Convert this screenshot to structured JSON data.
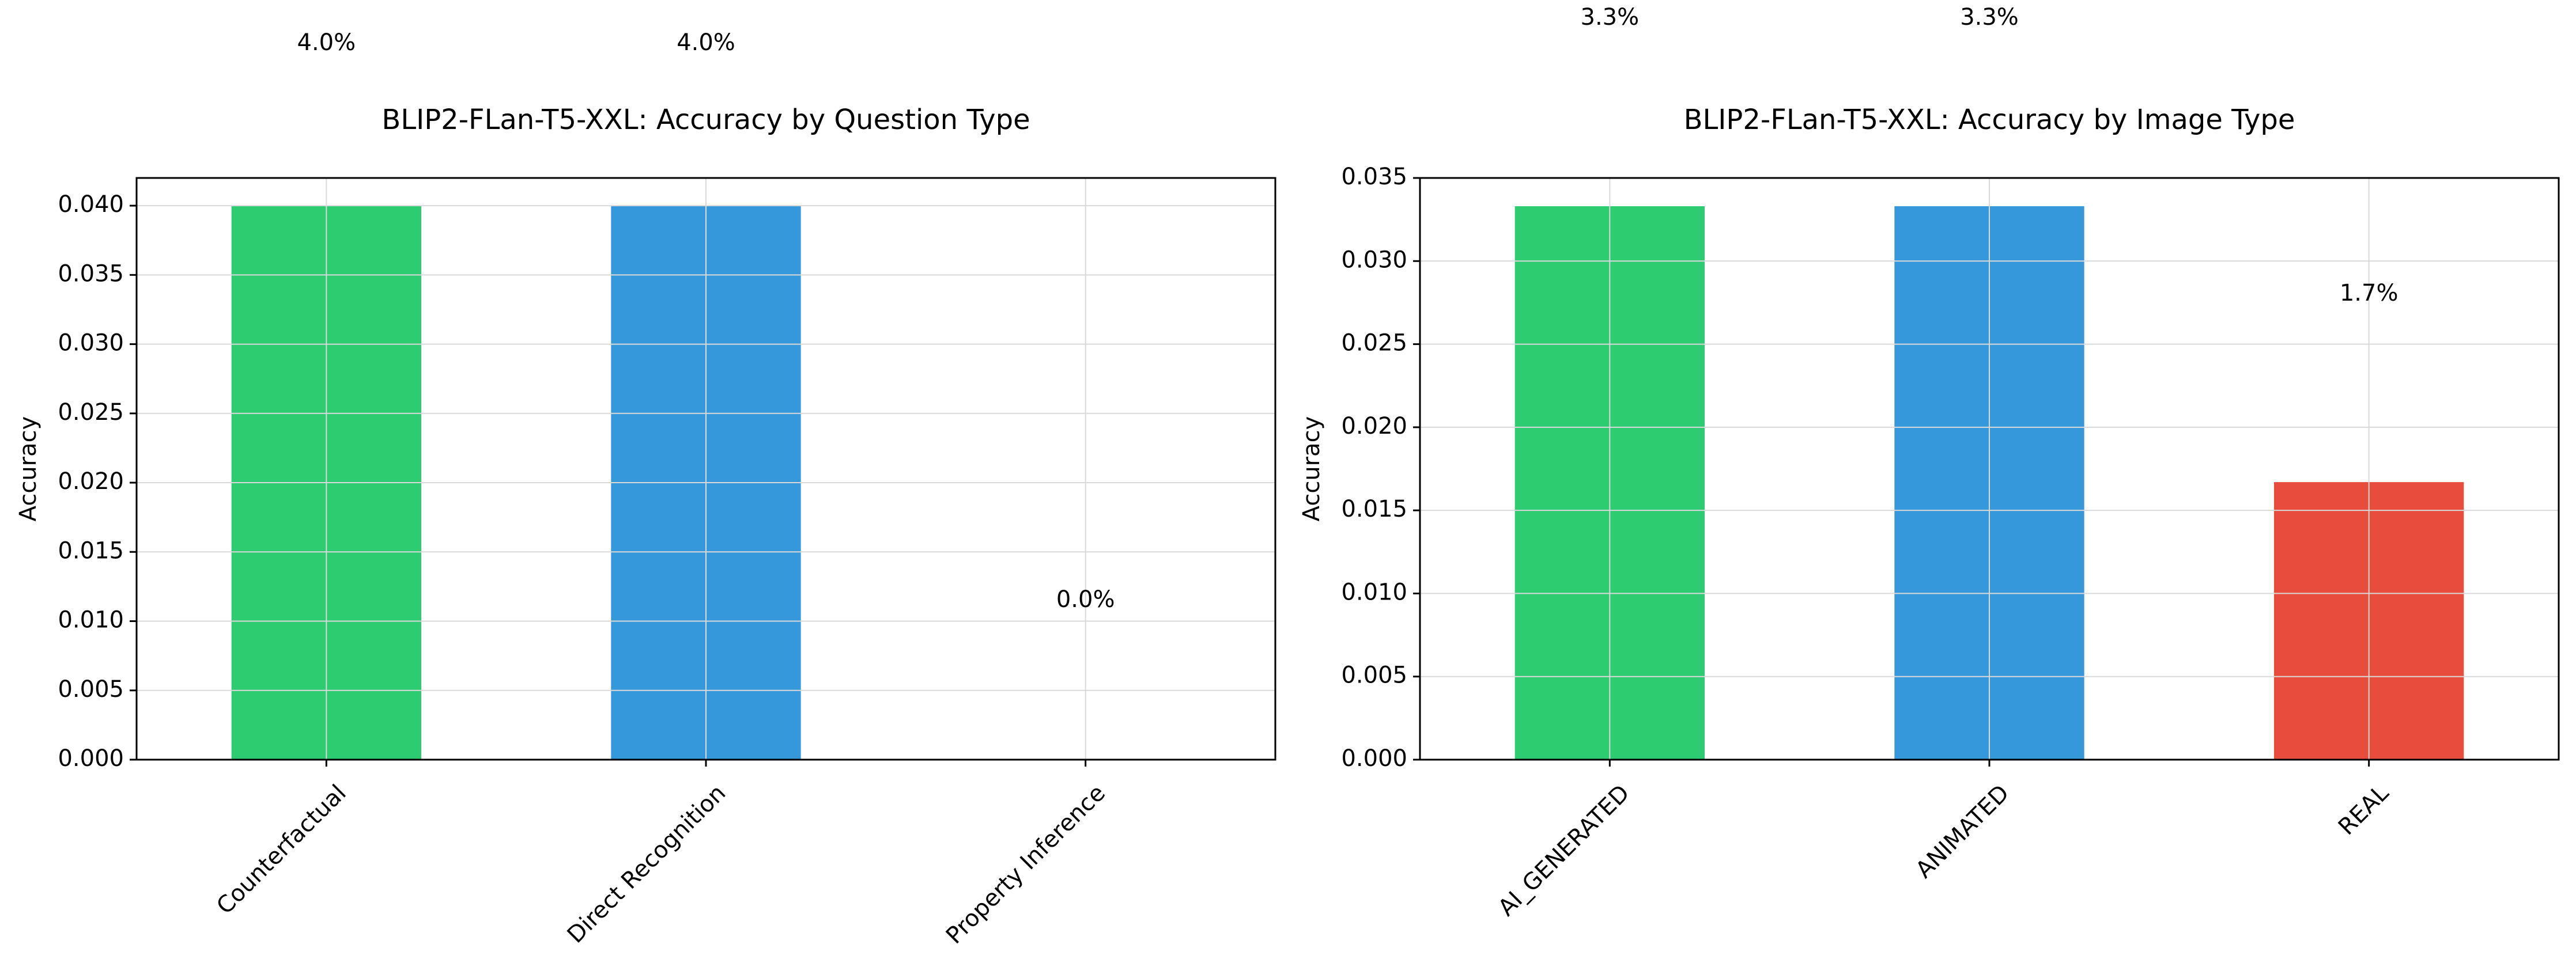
{
  "chart_data": [
    {
      "type": "bar",
      "title": "BLIP2-FLan-T5-XXL: Accuracy by Question Type",
      "xlabel": "",
      "ylabel": "Accuracy",
      "categories": [
        "Counterfactual",
        "Direct Recognition",
        "Property Inference"
      ],
      "values": [
        0.04,
        0.04,
        0.0
      ],
      "data_labels": [
        "4.0%",
        "4.0%",
        "0.0%"
      ],
      "colors": [
        "#2ecc71",
        "#3498db",
        "#e74c3c"
      ],
      "ylim": [
        0,
        0.042
      ],
      "yticks": [
        0.0,
        0.005,
        0.01,
        0.015,
        0.02,
        0.025,
        0.03,
        0.035,
        0.04
      ],
      "ytick_labels": [
        "0.000",
        "0.005",
        "0.010",
        "0.015",
        "0.020",
        "0.025",
        "0.030",
        "0.035",
        "0.040"
      ],
      "grid": true
    },
    {
      "type": "bar",
      "title": "BLIP2-FLan-T5-XXL: Accuracy by Image Type",
      "xlabel": "",
      "ylabel": "Accuracy",
      "categories": [
        "AI_GENERATED",
        "ANIMATED",
        "REAL"
      ],
      "values": [
        0.0333,
        0.0333,
        0.0167
      ],
      "data_labels": [
        "3.3%",
        "3.3%",
        "1.7%"
      ],
      "colors": [
        "#2ecc71",
        "#3498db",
        "#e74c3c"
      ],
      "ylim": [
        0,
        0.035
      ],
      "yticks": [
        0.0,
        0.005,
        0.01,
        0.015,
        0.02,
        0.025,
        0.03,
        0.035
      ],
      "ytick_labels": [
        "0.000",
        "0.005",
        "0.010",
        "0.015",
        "0.020",
        "0.025",
        "0.030",
        "0.035"
      ],
      "grid": true
    }
  ]
}
